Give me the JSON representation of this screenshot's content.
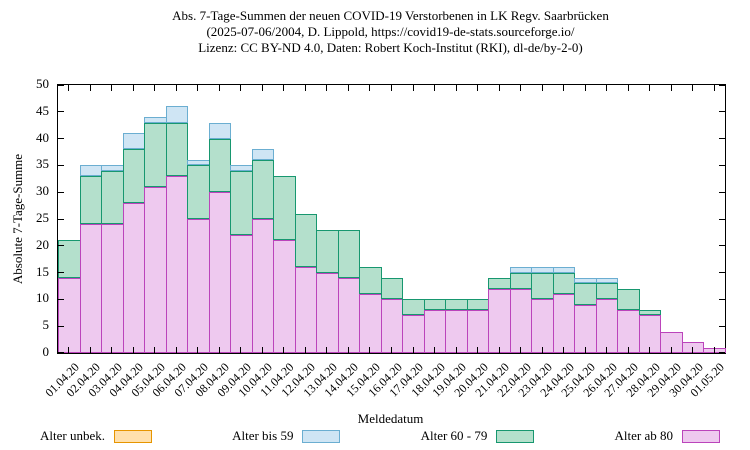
{
  "title_line1": "Abs. 7-Tage-Summen der neuen COVID-19 Verstorbenen in LK Regv. Saarbrücken",
  "title_line2": "(2025-07-06/2004, D. Lippold, https://covid19-de-stats.sourceforge.io/",
  "title_line3": "Lizenz: CC BY-ND 4.0, Daten: Robert Koch-Institut (RKI), dl-de/by-2-0)",
  "chart_data": {
    "type": "bar",
    "stacked": true,
    "title": "Abs. 7-Tage-Summen der neuen COVID-19 Verstorbenen in LK Regv. Saarbrücken",
    "xlabel": "Meldedatum",
    "ylabel": "Absolute 7-Tage-Summe",
    "ylim": [
      0,
      50
    ],
    "ytick_step": 5,
    "grid": false,
    "legend_position": "bottom",
    "categories": [
      "01.04.20",
      "02.04.20",
      "03.04.20",
      "04.04.20",
      "05.04.20",
      "06.04.20",
      "07.04.20",
      "08.04.20",
      "09.04.20",
      "10.04.20",
      "11.04.20",
      "12.04.20",
      "13.04.20",
      "14.04.20",
      "15.04.20",
      "16.04.20",
      "17.04.20",
      "18.04.20",
      "19.04.20",
      "20.04.20",
      "21.04.20",
      "22.04.20",
      "23.04.20",
      "24.04.20",
      "25.04.20",
      "26.04.20",
      "27.04.20",
      "28.04.20",
      "29.04.20",
      "30.04.20",
      "01.05.20"
    ],
    "series": [
      {
        "name": "Alter unbek.",
        "fill": "#ffe0ad",
        "border": "#e69500",
        "values": [
          0,
          0,
          0,
          0,
          0,
          0,
          0,
          0,
          0,
          0,
          0,
          0,
          0,
          0,
          0,
          0,
          0,
          0,
          0,
          0,
          0,
          0,
          0,
          0,
          0,
          0,
          0,
          0,
          0,
          0,
          0
        ]
      },
      {
        "name": "Alter bis 59",
        "fill": "#cfe5f4",
        "border": "#6baed1",
        "values": [
          0,
          2,
          1,
          3,
          1,
          3,
          1,
          3,
          1,
          2,
          0,
          0,
          0,
          0,
          0,
          0,
          0,
          0,
          0,
          0,
          0,
          1,
          1,
          1,
          1,
          1,
          0,
          0,
          0,
          0,
          0
        ]
      },
      {
        "name": "Alter 60 - 79",
        "fill": "#b4e0cc",
        "border": "#17976f",
        "values": [
          7,
          9,
          10,
          10,
          12,
          10,
          10,
          10,
          12,
          11,
          12,
          10,
          8,
          9,
          5,
          4,
          3,
          2,
          2,
          2,
          2,
          3,
          5,
          4,
          4,
          3,
          4,
          1,
          0,
          0,
          0
        ]
      },
      {
        "name": "Alter ab 80",
        "fill": "#eec9ef",
        "border": "#bb44bb",
        "values": [
          14,
          24,
          24,
          28,
          31,
          33,
          25,
          30,
          22,
          25,
          21,
          16,
          15,
          14,
          11,
          10,
          7,
          8,
          8,
          8,
          12,
          12,
          10,
          11,
          9,
          10,
          8,
          7,
          4,
          2,
          1
        ]
      }
    ]
  }
}
